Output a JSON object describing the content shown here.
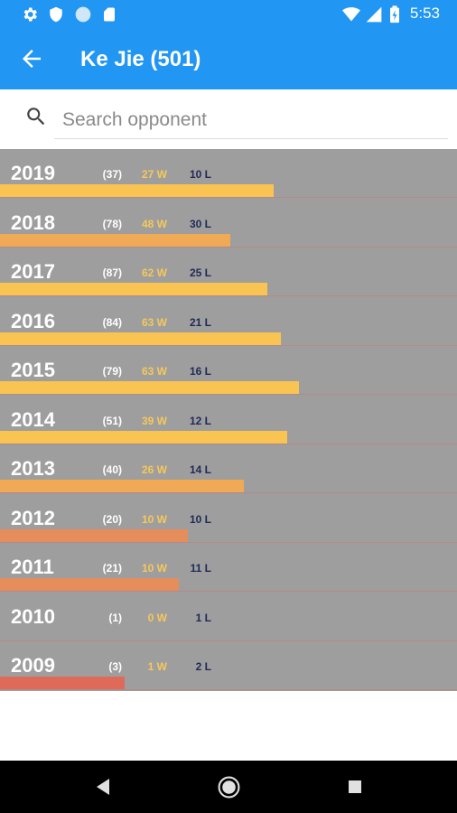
{
  "status_bar": {
    "time": "5:53",
    "left_icons": [
      "gear-icon",
      "shield-icon",
      "circle-icon",
      "sd-card-icon"
    ],
    "right_icons": [
      "wifi-icon",
      "signal-icon",
      "battery-icon"
    ]
  },
  "app_bar": {
    "title": "Ke Jie (501)",
    "back_icon": "arrow-left-icon"
  },
  "search": {
    "placeholder": "Search opponent",
    "value": "",
    "icon": "search-icon"
  },
  "colors": {
    "primary": "#2196f3",
    "chart_background": "#9e9e9e",
    "wins_text": "#f6c85a",
    "losses_text": "#1f2a55",
    "bar_high": "#f9c452",
    "bar_mid": "#f0a955",
    "bar_low": "#e58d5b",
    "bar_lowest": "#e06a5a"
  },
  "chart_data": {
    "type": "bar",
    "orientation": "horizontal",
    "categories": [
      "2019",
      "2018",
      "2017",
      "2016",
      "2015",
      "2014",
      "2013",
      "2012",
      "2011",
      "2010",
      "2009"
    ],
    "totals": [
      "(37)",
      "(78)",
      "(87)",
      "(84)",
      "(79)",
      "(51)",
      "(40)",
      "(20)",
      "(21)",
      "(1)",
      "(3)"
    ],
    "wins_labels": [
      "27 W",
      "48 W",
      "62 W",
      "63 W",
      "63 W",
      "39 W",
      "26 W",
      "10 W",
      "10 W",
      "0 W",
      "1 W"
    ],
    "losses_labels": [
      "10 L",
      "30 L",
      "25 L",
      "21 L",
      "16 L",
      "12 L",
      "14 L",
      "10 L",
      "11 L",
      "1 L",
      "2 L"
    ],
    "series": [
      {
        "values": [
          0.73,
          0.615,
          0.713,
          0.75,
          0.797,
          0.765,
          0.65,
          0.5,
          0.476,
          0,
          0.333
        ]
      }
    ],
    "xlim": [
      0,
      1
    ],
    "grid": false
  },
  "nav_bar": {
    "buttons": [
      "back-triangle-icon",
      "home-circle-icon",
      "recents-square-icon"
    ]
  }
}
